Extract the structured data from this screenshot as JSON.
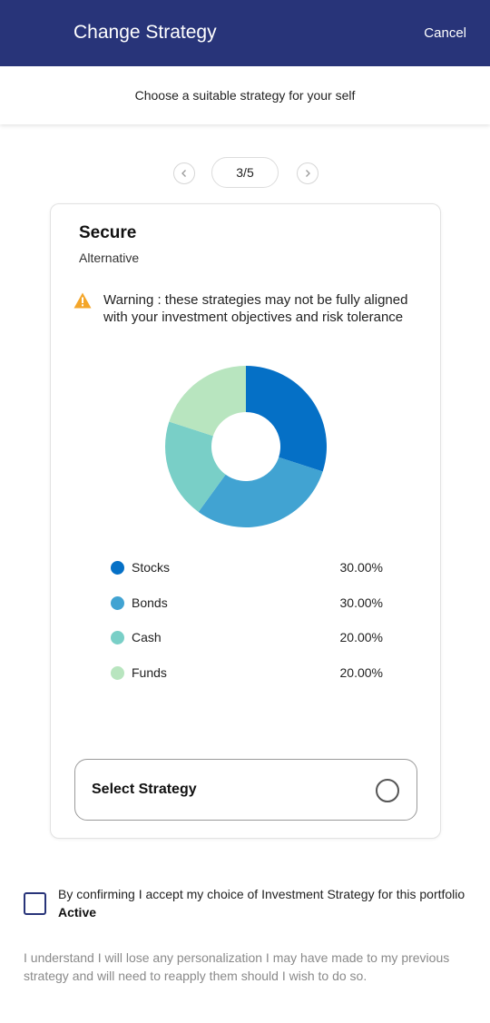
{
  "header": {
    "title": "Change Strategy",
    "cancel_label": "Cancel"
  },
  "subheader": {
    "text": "Choose a suitable strategy for your self"
  },
  "pager": {
    "prev_icon": "chevron-left-icon",
    "next_icon": "chevron-right-icon",
    "current": "3/5"
  },
  "strategy": {
    "name": "Secure",
    "type": "Alternative",
    "warning": "Warning : these strategies may not be fully aligned with your investment objectives and risk tolerance",
    "warning_color": "#f4a62a"
  },
  "chart_data": {
    "type": "pie",
    "style": "donut",
    "categories": [
      "Stocks",
      "Bonds",
      "Cash",
      "Funds"
    ],
    "values": [
      30,
      30,
      20,
      20
    ],
    "value_labels": [
      "30.00%",
      "30.00%",
      "20.00%",
      "20.00%"
    ],
    "colors": [
      "#0570c6",
      "#41a3d2",
      "#79cfc7",
      "#b8e5bf"
    ]
  },
  "select": {
    "label": "Select Strategy"
  },
  "confirm": {
    "text": "By confirming I accept my choice of Investment Strategy for this portfolio ",
    "portfolio": "Active",
    "checked": false,
    "accent": "#283479"
  },
  "note": "I understand I will lose any personalization I may have made to my previous strategy and will need to reapply them should I wish to do so."
}
